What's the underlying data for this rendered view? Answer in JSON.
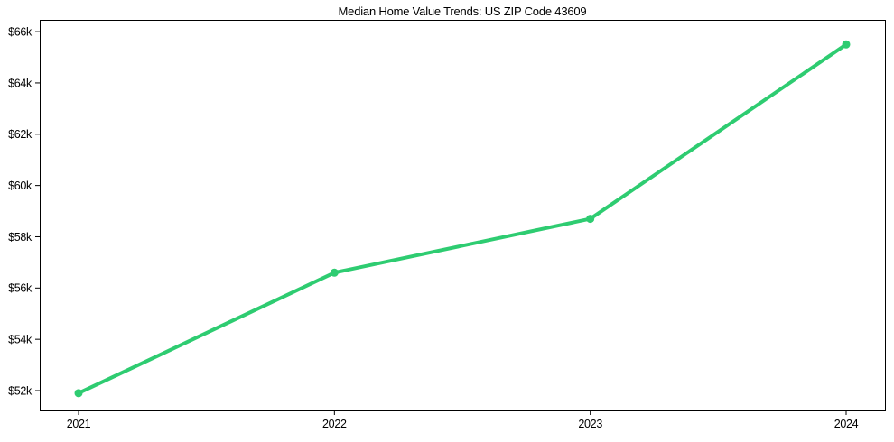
{
  "chart_data": {
    "type": "line",
    "title": "Median Home Value Trends: US ZIP Code 43609",
    "categories": [
      "2021",
      "2022",
      "2023",
      "2024"
    ],
    "series": [
      {
        "name": "Median Home Value",
        "values": [
          51900,
          56600,
          58700,
          65500
        ]
      }
    ],
    "y_ticks": [
      52000,
      54000,
      56000,
      58000,
      60000,
      62000,
      64000,
      66000
    ],
    "y_tick_labels": [
      "$52k",
      "$54k",
      "$56k",
      "$58k",
      "$60k",
      "$62k",
      "$64k",
      "$66k"
    ],
    "ylim": [
      51225,
      66460
    ],
    "xlabel": "",
    "ylabel": "",
    "grid": false,
    "legend_position": "none",
    "line_color": "#2ecc71",
    "marker": "circle",
    "axis_color": "#000000",
    "background_color": "#ffffff"
  }
}
